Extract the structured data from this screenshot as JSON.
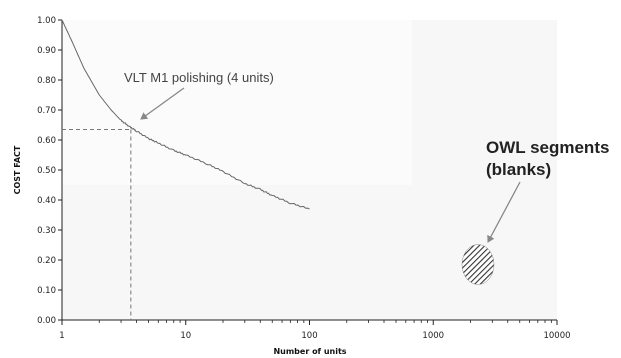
{
  "chart_data": {
    "type": "line",
    "xlabel": "Number of units",
    "ylabel": "COST FACT",
    "x_scale": "log",
    "xlim": [
      1,
      10000
    ],
    "ylim": [
      0,
      1
    ],
    "grid": false,
    "x_ticks": [
      "1",
      "10",
      "100",
      "1000",
      "10000"
    ],
    "y_ticks": [
      "0.00",
      "0.10",
      "0.20",
      "0.30",
      "0.40",
      "0.50",
      "0.60",
      "0.70",
      "0.80",
      "0.90",
      "1.00"
    ],
    "series": [
      {
        "x": [
          1,
          1.2,
          1.5,
          2,
          2.5,
          3,
          3.5,
          4,
          5,
          6,
          8,
          10,
          15,
          20,
          30,
          40,
          50,
          70,
          100
        ],
        "y": [
          1.0,
          0.93,
          0.84,
          0.75,
          0.7,
          0.665,
          0.645,
          0.63,
          0.605,
          0.59,
          0.565,
          0.55,
          0.52,
          0.495,
          0.455,
          0.435,
          0.415,
          0.39,
          0.37
        ]
      }
    ],
    "reference_point": {
      "x": 3.6,
      "y": 0.635
    },
    "owl_marker": {
      "x": 2300,
      "y": 0.185
    },
    "annotations": [
      {
        "id": "vlt",
        "lines": [
          "VLT M1 polishing (4 units)"
        ]
      },
      {
        "id": "owl",
        "lines": [
          "OWL segments",
          "(blanks)"
        ]
      }
    ],
    "colors": {
      "line": "#666666",
      "plot_bg": "#f7f7f7",
      "axis": "#222222",
      "hatch": "#333333"
    }
  }
}
